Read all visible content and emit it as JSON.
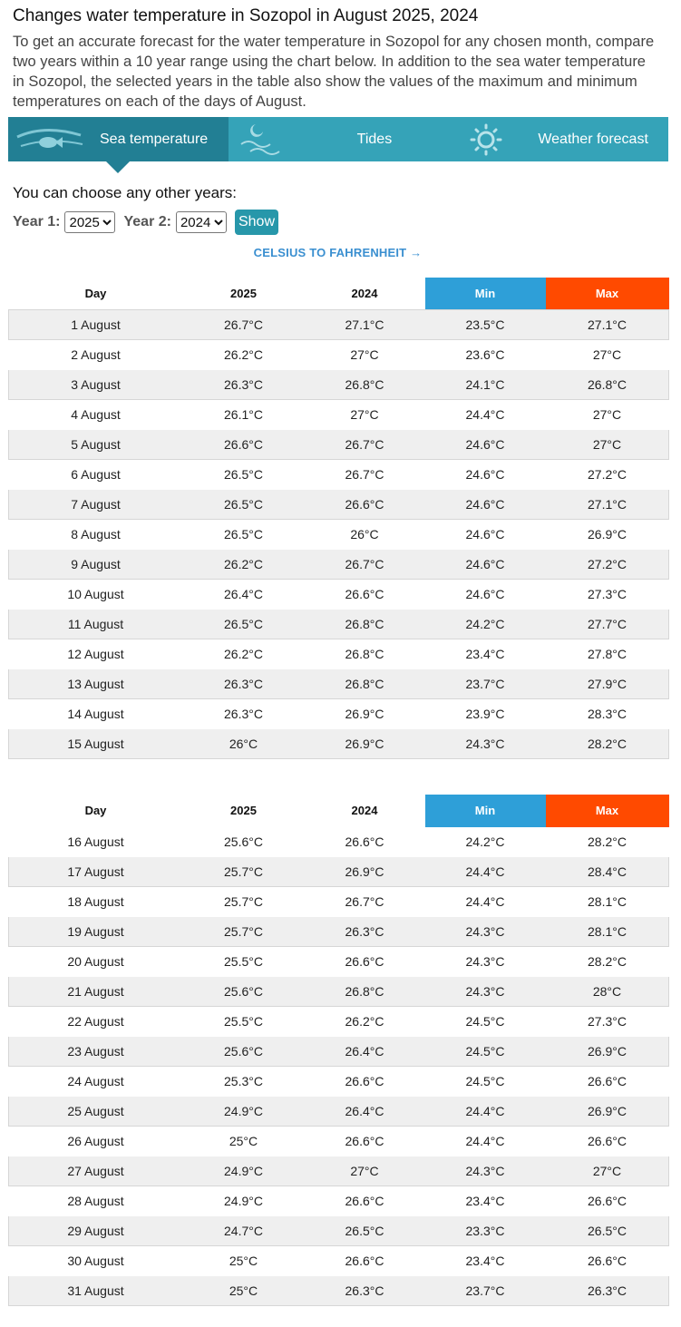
{
  "header": {
    "title": "Changes water temperature in Sozopol in August 2025, 2024",
    "intro": "To get an accurate forecast for the water temperature in Sozopol for any chosen month, compare two years within a 10 year range using the chart below. In addition to the sea water temperature in Sozopol, the selected years in the table also show the values of the maximum and minimum temperatures on each of the days of August."
  },
  "tabs": [
    "Sea temperature",
    "Tides",
    "Weather forecast"
  ],
  "selector": {
    "prompt": "You can choose any other years:",
    "year1_label": "Year 1:",
    "year1": "2025",
    "year2_label": "Year 2:",
    "year2": "2024",
    "button": "Show"
  },
  "conversion_link": "CELSIUS TO FAHRENHEIT →",
  "tables": [
    {
      "header": [
        "Day",
        "2025",
        "2024",
        "Min",
        "Max"
      ],
      "rows": [
        [
          "1 August",
          "26.7°C",
          "27.1°C",
          "23.5°C",
          "27.1°C"
        ],
        [
          "2 August",
          "26.2°C",
          "27°C",
          "23.6°C",
          "27°C"
        ],
        [
          "3 August",
          "26.3°C",
          "26.8°C",
          "24.1°C",
          "26.8°C"
        ],
        [
          "4 August",
          "26.1°C",
          "27°C",
          "24.4°C",
          "27°C"
        ],
        [
          "5 August",
          "26.6°C",
          "26.7°C",
          "24.6°C",
          "27°C"
        ],
        [
          "6 August",
          "26.5°C",
          "26.7°C",
          "24.6°C",
          "27.2°C"
        ],
        [
          "7 August",
          "26.5°C",
          "26.6°C",
          "24.6°C",
          "27.1°C"
        ],
        [
          "8 August",
          "26.5°C",
          "26°C",
          "24.6°C",
          "26.9°C"
        ],
        [
          "9 August",
          "26.2°C",
          "26.7°C",
          "24.6°C",
          "27.2°C"
        ],
        [
          "10 August",
          "26.4°C",
          "26.6°C",
          "24.6°C",
          "27.3°C"
        ],
        [
          "11 August",
          "26.5°C",
          "26.8°C",
          "24.2°C",
          "27.7°C"
        ],
        [
          "12 August",
          "26.2°C",
          "26.8°C",
          "23.4°C",
          "27.8°C"
        ],
        [
          "13 August",
          "26.3°C",
          "26.8°C",
          "23.7°C",
          "27.9°C"
        ],
        [
          "14 August",
          "26.3°C",
          "26.9°C",
          "23.9°C",
          "28.3°C"
        ],
        [
          "15 August",
          "26°C",
          "26.9°C",
          "24.3°C",
          "28.2°C"
        ]
      ]
    },
    {
      "header": [
        "Day",
        "2025",
        "2024",
        "Min",
        "Max"
      ],
      "rows": [
        [
          "16 August",
          "25.6°C",
          "26.6°C",
          "24.2°C",
          "28.2°C"
        ],
        [
          "17 August",
          "25.7°C",
          "26.9°C",
          "24.4°C",
          "28.4°C"
        ],
        [
          "18 August",
          "25.7°C",
          "26.7°C",
          "24.4°C",
          "28.1°C"
        ],
        [
          "19 August",
          "25.7°C",
          "26.3°C",
          "24.3°C",
          "28.1°C"
        ],
        [
          "20 August",
          "25.5°C",
          "26.6°C",
          "24.3°C",
          "28.2°C"
        ],
        [
          "21 August",
          "25.6°C",
          "26.8°C",
          "24.3°C",
          "28°C"
        ],
        [
          "22 August",
          "25.5°C",
          "26.2°C",
          "24.5°C",
          "27.3°C"
        ],
        [
          "23 August",
          "25.6°C",
          "26.4°C",
          "24.5°C",
          "26.9°C"
        ],
        [
          "24 August",
          "25.3°C",
          "26.6°C",
          "24.5°C",
          "26.6°C"
        ],
        [
          "25 August",
          "24.9°C",
          "26.4°C",
          "24.4°C",
          "26.9°C"
        ],
        [
          "26 August",
          "25°C",
          "26.6°C",
          "24.4°C",
          "26.6°C"
        ],
        [
          "27 August",
          "24.9°C",
          "27°C",
          "24.3°C",
          "27°C"
        ],
        [
          "28 August",
          "24.9°C",
          "26.6°C",
          "23.4°C",
          "26.6°C"
        ],
        [
          "29 August",
          "24.7°C",
          "26.5°C",
          "23.3°C",
          "26.5°C"
        ],
        [
          "30 August",
          "25°C",
          "26.6°C",
          "23.4°C",
          "26.6°C"
        ],
        [
          "31 August",
          "25°C",
          "26.3°C",
          "23.7°C",
          "26.3°C"
        ]
      ]
    }
  ]
}
